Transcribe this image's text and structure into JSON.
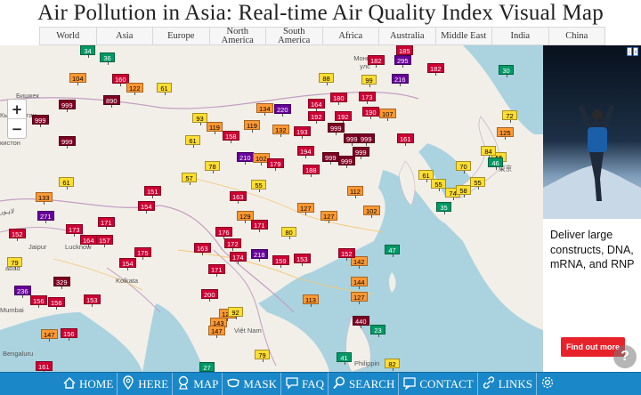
{
  "page_title": "Air Pollution in Asia: Real-time Air Quality Index Visual Map",
  "region_nav": [
    {
      "id": "world",
      "label": "World"
    },
    {
      "id": "asia",
      "label": "Asia"
    },
    {
      "id": "europe",
      "label": "Europe"
    },
    {
      "id": "north-america",
      "label": "North America"
    },
    {
      "id": "south-america",
      "label": "South America"
    },
    {
      "id": "africa",
      "label": "Africa"
    },
    {
      "id": "australia",
      "label": "Australia"
    },
    {
      "id": "middle-east",
      "label": "Middle East"
    },
    {
      "id": "india",
      "label": "India"
    },
    {
      "id": "china",
      "label": "China"
    }
  ],
  "zoom": {
    "in_label": "+",
    "out_label": "−"
  },
  "map_labels": [
    {
      "id": "mongolia",
      "text": "Монгол улс"
    },
    {
      "id": "bishkek",
      "text": "Бишкек"
    },
    {
      "id": "kyrgyzstan",
      "text": "Кыргызстан"
    },
    {
      "id": "tajikistan",
      "text": "кистон"
    },
    {
      "id": "jaipur",
      "text": "Jaipur"
    },
    {
      "id": "lucknow",
      "text": "Lucknow"
    },
    {
      "id": "ahmedabad",
      "text": "abad"
    },
    {
      "id": "kolkata",
      "text": "Kolkata"
    },
    {
      "id": "mumbai",
      "text": "Mumbai"
    },
    {
      "id": "bengaluru",
      "text": "Bengaluru"
    },
    {
      "id": "vietnam",
      "text": "Việt Nam"
    },
    {
      "id": "philippines",
      "text": "Philippin"
    },
    {
      "id": "tokyo",
      "text": "東京"
    },
    {
      "id": "lahore",
      "text": "لاہور"
    }
  ],
  "stations": [
    {
      "v": "34",
      "c": "#009966"
    },
    {
      "v": "36",
      "c": "#009966"
    },
    {
      "v": "104",
      "c": "#ff9933"
    },
    {
      "v": "160",
      "c": "#cc0033"
    },
    {
      "v": "122",
      "c": "#ff9933"
    },
    {
      "v": "61",
      "c": "#ffde33"
    },
    {
      "v": "890",
      "c": "#7e0023"
    },
    {
      "v": "999",
      "c": "#7e0023"
    },
    {
      "v": "999",
      "c": "#7e0023"
    },
    {
      "v": "999",
      "c": "#7e0023"
    },
    {
      "v": "61",
      "c": "#ffde33"
    },
    {
      "v": "133",
      "c": "#ff9933"
    },
    {
      "v": "271",
      "c": "#660099"
    },
    {
      "v": "151",
      "c": "#cc0033"
    },
    {
      "v": "154",
      "c": "#cc0033"
    },
    {
      "v": "57",
      "c": "#ffde33"
    },
    {
      "v": "152",
      "c": "#cc0033"
    },
    {
      "v": "173",
      "c": "#cc0033"
    },
    {
      "v": "171",
      "c": "#cc0033"
    },
    {
      "v": "164",
      "c": "#cc0033"
    },
    {
      "v": "157",
      "c": "#cc0033"
    },
    {
      "v": "79",
      "c": "#ffde33"
    },
    {
      "v": "154",
      "c": "#cc0033"
    },
    {
      "v": "175",
      "c": "#cc0033"
    },
    {
      "v": "236",
      "c": "#660099"
    },
    {
      "v": "329",
      "c": "#7e0023"
    },
    {
      "v": "156",
      "c": "#cc0033"
    },
    {
      "v": "156",
      "c": "#cc0033"
    },
    {
      "v": "153",
      "c": "#cc0033"
    },
    {
      "v": "147",
      "c": "#ff9933"
    },
    {
      "v": "156",
      "c": "#cc0033"
    },
    {
      "v": "161",
      "c": "#cc0033"
    },
    {
      "v": "88",
      "c": "#ffde33"
    },
    {
      "v": "185",
      "c": "#cc0033"
    },
    {
      "v": "182",
      "c": "#cc0033"
    },
    {
      "v": "295",
      "c": "#660099"
    },
    {
      "v": "182",
      "c": "#cc0033"
    },
    {
      "v": "99",
      "c": "#ffde33"
    },
    {
      "v": "216",
      "c": "#660099"
    },
    {
      "v": "30",
      "c": "#009966"
    },
    {
      "v": "134",
      "c": "#ff9933"
    },
    {
      "v": "220",
      "c": "#660099"
    },
    {
      "v": "164",
      "c": "#cc0033"
    },
    {
      "v": "180",
      "c": "#cc0033"
    },
    {
      "v": "173",
      "c": "#cc0033"
    },
    {
      "v": "192",
      "c": "#cc0033"
    },
    {
      "v": "192",
      "c": "#cc0033"
    },
    {
      "v": "190",
      "c": "#cc0033"
    },
    {
      "v": "107",
      "c": "#ff9933"
    },
    {
      "v": "93",
      "c": "#ffde33"
    },
    {
      "v": "119",
      "c": "#ff9933"
    },
    {
      "v": "119",
      "c": "#ff9933"
    },
    {
      "v": "132",
      "c": "#ff9933"
    },
    {
      "v": "193",
      "c": "#cc0033"
    },
    {
      "v": "999",
      "c": "#7e0023"
    },
    {
      "v": "999",
      "c": "#7e0023"
    },
    {
      "v": "999",
      "c": "#7e0023"
    },
    {
      "v": "161",
      "c": "#cc0033"
    },
    {
      "v": "158",
      "c": "#cc0033"
    },
    {
      "v": "61",
      "c": "#ffde33"
    },
    {
      "v": "210",
      "c": "#660099"
    },
    {
      "v": "102",
      "c": "#ff9933"
    },
    {
      "v": "179",
      "c": "#cc0033"
    },
    {
      "v": "194",
      "c": "#cc0033"
    },
    {
      "v": "999",
      "c": "#7e0023"
    },
    {
      "v": "999",
      "c": "#7e0023"
    },
    {
      "v": "999",
      "c": "#7e0023"
    },
    {
      "v": "188",
      "c": "#cc0033"
    },
    {
      "v": "78",
      "c": "#ffde33"
    },
    {
      "v": "163",
      "c": "#cc0033"
    },
    {
      "v": "55",
      "c": "#ffde33"
    },
    {
      "v": "112",
      "c": "#ff9933"
    },
    {
      "v": "127",
      "c": "#ff9933"
    },
    {
      "v": "129",
      "c": "#ff9933"
    },
    {
      "v": "171",
      "c": "#cc0033"
    },
    {
      "v": "127",
      "c": "#ff9933"
    },
    {
      "v": "176",
      "c": "#cc0033"
    },
    {
      "v": "172",
      "c": "#cc0033"
    },
    {
      "v": "163",
      "c": "#cc0033"
    },
    {
      "v": "174",
      "c": "#cc0033"
    },
    {
      "v": "218",
      "c": "#660099"
    },
    {
      "v": "159",
      "c": "#cc0033"
    },
    {
      "v": "153",
      "c": "#cc0033"
    },
    {
      "v": "142",
      "c": "#ff9933"
    },
    {
      "v": "152",
      "c": "#cc0033"
    },
    {
      "v": "171",
      "c": "#cc0033"
    },
    {
      "v": "200",
      "c": "#cc0033"
    },
    {
      "v": "120",
      "c": "#ff9933"
    },
    {
      "v": "143",
      "c": "#ff9933"
    },
    {
      "v": "147",
      "c": "#ff9933"
    },
    {
      "v": "127",
      "c": "#ff9933"
    },
    {
      "v": "440",
      "c": "#7e0023"
    },
    {
      "v": "23",
      "c": "#009966"
    },
    {
      "v": "41",
      "c": "#009966"
    },
    {
      "v": "82",
      "c": "#ffde33"
    },
    {
      "v": "72",
      "c": "#ffde33"
    },
    {
      "v": "125",
      "c": "#ff9933"
    },
    {
      "v": "55",
      "c": "#ffde33"
    },
    {
      "v": "84",
      "c": "#ffde33"
    },
    {
      "v": "70",
      "c": "#ffde33"
    },
    {
      "v": "61",
      "c": "#ffde33"
    },
    {
      "v": "55",
      "c": "#ffde33"
    },
    {
      "v": "74",
      "c": "#ffde33"
    },
    {
      "v": "35",
      "c": "#009966"
    },
    {
      "v": "55",
      "c": "#ffde33"
    },
    {
      "v": "46",
      "c": "#009966"
    },
    {
      "v": "27",
      "c": "#009966"
    },
    {
      "v": "79",
      "c": "#ffde33"
    },
    {
      "v": "92",
      "c": "#ffde33"
    },
    {
      "v": "113",
      "c": "#ff9933"
    },
    {
      "v": "80",
      "c": "#ffde33"
    },
    {
      "v": "144",
      "c": "#ff9933"
    },
    {
      "v": "102",
      "c": "#ff9933"
    },
    {
      "v": "47",
      "c": "#009966"
    },
    {
      "v": "58",
      "c": "#ffde33"
    }
  ],
  "ad": {
    "text": "Deliver large constructs, DNA, mRNA, and RNP",
    "button_label": "Find out more",
    "info_a": "i",
    "info_b": "x"
  },
  "help_label": "?",
  "bottom_nav": [
    {
      "id": "home",
      "label": "HOME",
      "icon": "home-icon"
    },
    {
      "id": "here",
      "label": "HERE",
      "icon": "location-pin-icon"
    },
    {
      "id": "map",
      "label": "MAP",
      "icon": "map-pin-icon"
    },
    {
      "id": "mask",
      "label": "MASK",
      "icon": "mask-icon"
    },
    {
      "id": "faq",
      "label": "FAQ",
      "icon": "faq-bubble-icon"
    },
    {
      "id": "search",
      "label": "SEARCH",
      "icon": "search-icon"
    },
    {
      "id": "contact",
      "label": "CONTACT",
      "icon": "contact-icon"
    },
    {
      "id": "links",
      "label": "LINKS",
      "icon": "link-icon"
    },
    {
      "id": "settings",
      "label": "",
      "icon": "gear-icon"
    }
  ]
}
